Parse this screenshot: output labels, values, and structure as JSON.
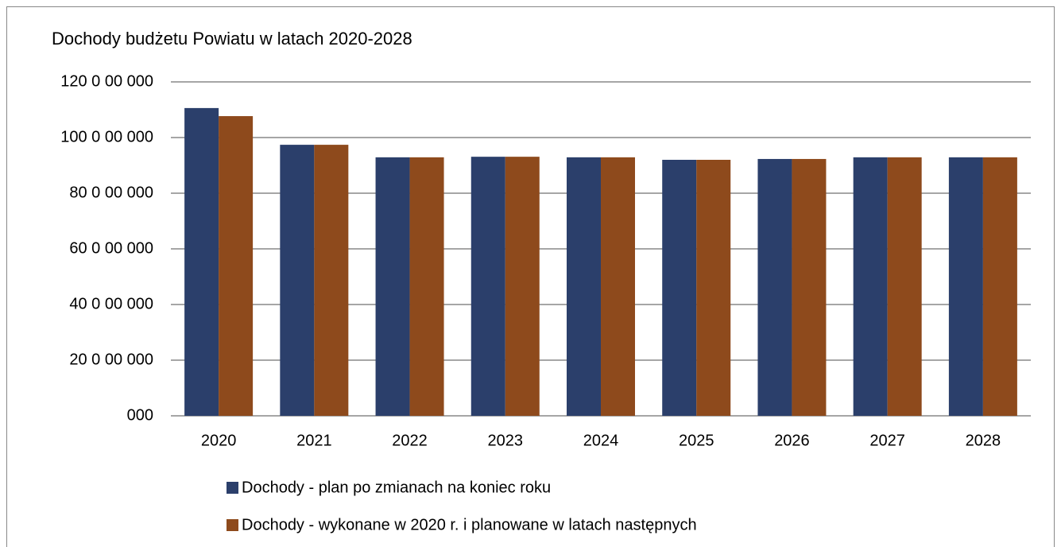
{
  "chart_data": {
    "type": "bar",
    "title": "Dochody budżetu Powiatu w latach 2020-2028",
    "categories": [
      "2020",
      "2021",
      "2022",
      "2023",
      "2024",
      "2025",
      "2026",
      "2027",
      "2028"
    ],
    "series": [
      {
        "name": "Dochody - plan po zmianach na koniec roku",
        "color": "#2b3f6b",
        "values": [
          110600000,
          97400000,
          92900000,
          93100000,
          92900000,
          92000000,
          92300000,
          92900000,
          92900000
        ]
      },
      {
        "name": "Dochody - wykonane w 2020 r. i planowane w latach następnych",
        "color": "#8e4a1c",
        "values": [
          107700000,
          97400000,
          92900000,
          93100000,
          92900000,
          92000000,
          92300000,
          92900000,
          92900000
        ]
      }
    ],
    "ylim": [
      0,
      120000000
    ],
    "yticks": [
      {
        "value": 0,
        "label": "000"
      },
      {
        "value": 20000000,
        "label": "20 0 00 000"
      },
      {
        "value": 40000000,
        "label": "40 0 00 000"
      },
      {
        "value": 60000000,
        "label": "60 0 00 000"
      },
      {
        "value": 80000000,
        "label": "80 0 00 000"
      },
      {
        "value": 100000000,
        "label": "100 0 00 000"
      },
      {
        "value": 120000000,
        "label": "120 0 00 000"
      }
    ],
    "grid": true
  }
}
